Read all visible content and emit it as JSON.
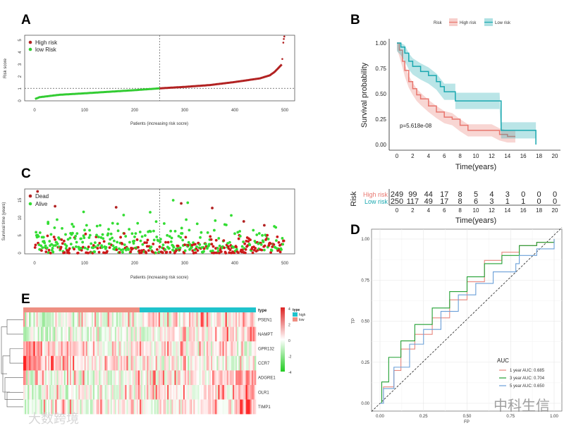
{
  "panels": {
    "a": "A",
    "b": "B",
    "c": "C",
    "d": "D",
    "e": "E"
  },
  "watermarks": {
    "left": "大数跨境",
    "right": "中科生信"
  },
  "chart_data": [
    {
      "id": "A",
      "type": "scatter",
      "title": "",
      "xlabel": "Patients (increasing risk socre)",
      "ylabel": "Risk score",
      "xlim": [
        0,
        500
      ],
      "ylim": [
        0,
        5.4
      ],
      "xticks": [
        0,
        100,
        200,
        300,
        400,
        500
      ],
      "yticks": [
        0,
        1,
        2,
        3,
        4,
        5
      ],
      "cutoff": {
        "x": 250,
        "y": 1.03
      },
      "legend": [
        {
          "label": "High risk",
          "color": "#b22222"
        },
        {
          "label": "low Risk",
          "color": "#33cc33"
        }
      ],
      "curve": [
        [
          1,
          0.15
        ],
        [
          10,
          0.3
        ],
        [
          50,
          0.5
        ],
        [
          100,
          0.62
        ],
        [
          150,
          0.75
        ],
        [
          200,
          0.88
        ],
        [
          250,
          1.03
        ],
        [
          300,
          1.15
        ],
        [
          350,
          1.3
        ],
        [
          400,
          1.55
        ],
        [
          450,
          1.85
        ],
        [
          470,
          2.1
        ],
        [
          480,
          2.4
        ],
        [
          494,
          3.0
        ]
      ],
      "outliers": [
        [
          495,
          3.45
        ],
        [
          497,
          4.8
        ],
        [
          498,
          5.1
        ],
        [
          499,
          5.3
        ]
      ]
    },
    {
      "id": "B",
      "type": "line",
      "xlabel": "Time(years)",
      "ylabel": "Survival probability",
      "legend_title": "Risk",
      "xlim": [
        0,
        20
      ],
      "ylim": [
        0,
        1
      ],
      "xticks": [
        0,
        2,
        4,
        6,
        8,
        10,
        12,
        14,
        16,
        18,
        20
      ],
      "yticks": [
        "0.00",
        "0.25",
        "0.50",
        "0.75",
        "1.00"
      ],
      "pvalue": "p=5.618e-08",
      "series": [
        {
          "name": "High risk",
          "color": "#e8766e",
          "points": [
            [
              0,
              1
            ],
            [
              0.3,
              0.93
            ],
            [
              0.7,
              0.82
            ],
            [
              1,
              0.73
            ],
            [
              1.5,
              0.62
            ],
            [
              2,
              0.55
            ],
            [
              2.5,
              0.49
            ],
            [
              3,
              0.45
            ],
            [
              4,
              0.38
            ],
            [
              5,
              0.32
            ],
            [
              6,
              0.27
            ],
            [
              7,
              0.25
            ],
            [
              8,
              0.19
            ],
            [
              9,
              0.14
            ],
            [
              12,
              0.14
            ],
            [
              13,
              0.1
            ],
            [
              14,
              0.08
            ],
            [
              15,
              0.08
            ]
          ],
          "ci": 0.06
        },
        {
          "name": "Low risk",
          "color": "#1aa8b0",
          "points": [
            [
              0,
              1
            ],
            [
              0.5,
              0.96
            ],
            [
              1,
              0.9
            ],
            [
              1.5,
              0.82
            ],
            [
              2,
              0.77
            ],
            [
              3,
              0.72
            ],
            [
              4,
              0.68
            ],
            [
              5,
              0.62
            ],
            [
              5.5,
              0.57
            ],
            [
              6,
              0.52
            ],
            [
              7.4,
              0.52
            ],
            [
              7.4,
              0.43
            ],
            [
              13,
              0.43
            ],
            [
              13.2,
              0.14
            ],
            [
              17.6,
              0.14
            ],
            [
              17.6,
              0
            ]
          ],
          "ci": 0.08
        }
      ],
      "risk_table": {
        "title": "Risk",
        "xlabel": "Time(years)",
        "times": [
          0,
          2,
          4,
          6,
          8,
          10,
          12,
          14,
          16,
          18,
          20
        ],
        "rows": [
          {
            "name": "High risk",
            "values": [
              249,
              99,
              44,
              17,
              8,
              5,
              4,
              3,
              0,
              0,
              0
            ]
          },
          {
            "name": "Low risk",
            "values": [
              250,
              117,
              49,
              17,
              8,
              6,
              3,
              1,
              1,
              0,
              0
            ]
          }
        ]
      }
    },
    {
      "id": "C",
      "type": "scatter",
      "xlabel": "Patients (increasing risk socre)",
      "ylabel": "Survival time (years)",
      "xlim": [
        0,
        500
      ],
      "ylim": [
        0,
        17.5
      ],
      "xticks": [
        0,
        100,
        200,
        300,
        400,
        500
      ],
      "yticks": [
        0,
        5,
        10,
        15
      ],
      "cutoff": {
        "x": 250
      },
      "legend": [
        {
          "label": "Dead",
          "color": "#b22222"
        },
        {
          "label": "Alive",
          "color": "#33dd33"
        }
      ],
      "notable_points": [
        {
          "x": 6,
          "y": 17.5,
          "status": "Dead"
        },
        {
          "x": 41,
          "y": 13.3,
          "status": "Dead"
        },
        {
          "x": 163,
          "y": 13,
          "status": "Dead"
        },
        {
          "x": 277,
          "y": 15,
          "status": "Alive"
        },
        {
          "x": 293,
          "y": 14.1,
          "status": "Dead"
        },
        {
          "x": 306,
          "y": 14.3,
          "status": "Alive"
        },
        {
          "x": 355,
          "y": 12.8,
          "status": "Dead"
        },
        {
          "x": 98,
          "y": 11.7,
          "status": "Alive"
        },
        {
          "x": 231,
          "y": 11.6,
          "status": "Alive"
        },
        {
          "x": 178,
          "y": 10.8,
          "status": "Alive"
        },
        {
          "x": 393,
          "y": 10.7,
          "status": "Alive"
        },
        {
          "x": 418,
          "y": 9,
          "status": "Dead"
        },
        {
          "x": 27,
          "y": 8.8,
          "status": "Alive"
        },
        {
          "x": 459,
          "y": 7.9,
          "status": "Dead"
        }
      ]
    },
    {
      "id": "D",
      "type": "line",
      "xlabel": "FP",
      "ylabel": "TP",
      "xlim": [
        0,
        1
      ],
      "ylim": [
        0,
        1
      ],
      "xticks": [
        "0.00",
        "0.25",
        "0.50",
        "0.75",
        "1.00"
      ],
      "yticks": [
        "0.00",
        "0.25",
        "0.50",
        "0.75",
        "1.00"
      ],
      "legend_title": "AUC",
      "series": [
        {
          "name": "1 year AUC: 0.685",
          "color": "#e8877e",
          "points": [
            [
              0,
              0
            ],
            [
              0.02,
              0.1
            ],
            [
              0.08,
              0.2
            ],
            [
              0.12,
              0.33
            ],
            [
              0.2,
              0.42
            ],
            [
              0.3,
              0.52
            ],
            [
              0.4,
              0.63
            ],
            [
              0.5,
              0.74
            ],
            [
              0.6,
              0.87
            ],
            [
              0.7,
              0.92
            ],
            [
              0.8,
              0.96
            ],
            [
              0.9,
              0.98
            ],
            [
              1,
              1
            ]
          ]
        },
        {
          "name": "3 year AUC: 0.704",
          "color": "#22a033",
          "points": [
            [
              0,
              0
            ],
            [
              0.01,
              0.13
            ],
            [
              0.05,
              0.28
            ],
            [
              0.12,
              0.38
            ],
            [
              0.2,
              0.48
            ],
            [
              0.3,
              0.58
            ],
            [
              0.4,
              0.68
            ],
            [
              0.5,
              0.77
            ],
            [
              0.6,
              0.85
            ],
            [
              0.7,
              0.9
            ],
            [
              0.8,
              0.96
            ],
            [
              0.9,
              0.98
            ],
            [
              1,
              1
            ]
          ]
        },
        {
          "name": "5 year AUC: 0.650",
          "color": "#6a9fd8",
          "points": [
            [
              0,
              0
            ],
            [
              0.02,
              0.09
            ],
            [
              0.08,
              0.22
            ],
            [
              0.17,
              0.36
            ],
            [
              0.25,
              0.45
            ],
            [
              0.35,
              0.56
            ],
            [
              0.45,
              0.66
            ],
            [
              0.55,
              0.73
            ],
            [
              0.65,
              0.8
            ],
            [
              0.78,
              0.85
            ],
            [
              0.8,
              0.9
            ],
            [
              0.9,
              0.94
            ],
            [
              1,
              1
            ]
          ]
        }
      ]
    },
    {
      "id": "E",
      "type": "heatmap",
      "genes": [
        "PSEN1",
        "NAMPT",
        "GPR132",
        "CCR7",
        "ADGRE1",
        "OLR1",
        "TIMP1"
      ],
      "annotation": {
        "title": "type",
        "groups": [
          {
            "label": "high",
            "color": "#1fc3cc"
          },
          {
            "label": "low",
            "color": "#ee8f82"
          }
        ]
      },
      "scale": {
        "min": -4,
        "max": 4,
        "ticks": [
          4,
          2,
          0,
          -2,
          -4
        ],
        "low": "#22cc22",
        "mid": "#ffffff",
        "high": "#dd2222"
      }
    }
  ]
}
